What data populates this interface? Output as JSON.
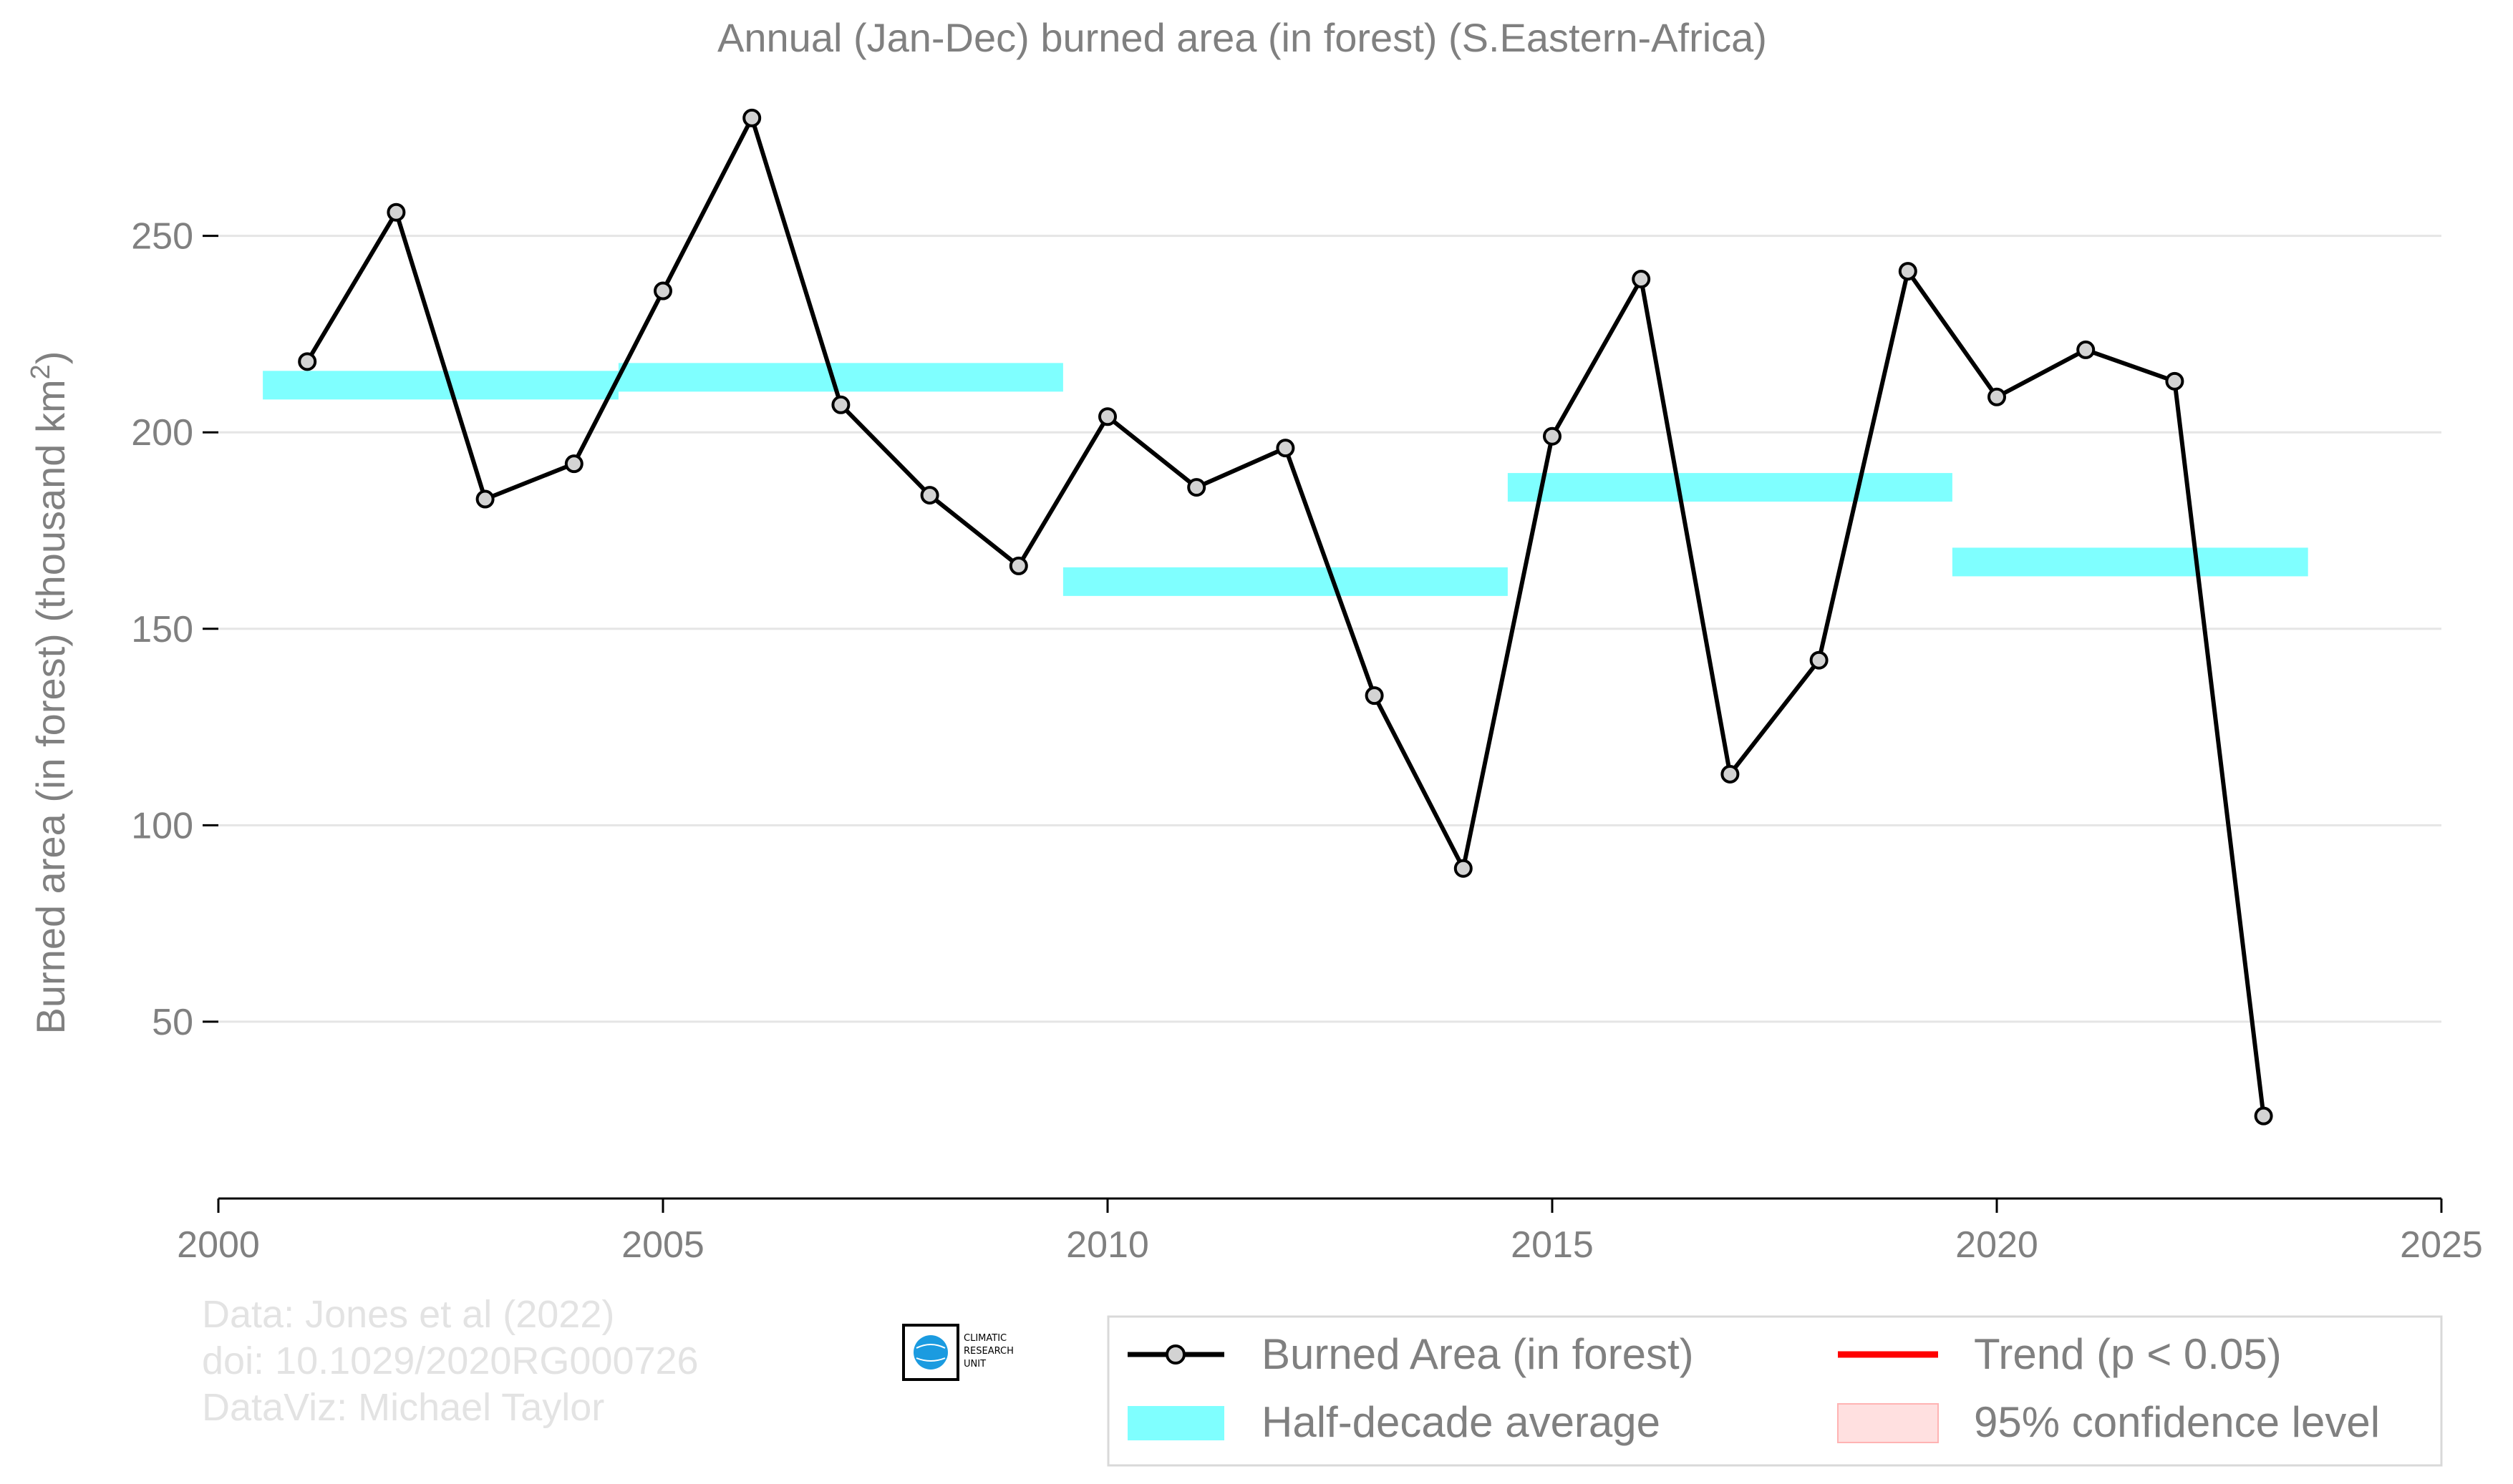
{
  "chart_data": {
    "type": "line",
    "title": "Annual (Jan-Dec) burned area (in forest) (S.Eastern-Africa)",
    "xlabel": "",
    "ylabel": "Burned area (in forest) (thousand km",
    "ylabel_superscript": "2",
    "ylabel_close": ")",
    "xlim": [
      2000,
      2025
    ],
    "ylim": [
      5,
      290
    ],
    "x_ticks": [
      2000,
      2005,
      2010,
      2015,
      2020,
      2025
    ],
    "y_ticks": [
      50,
      100,
      150,
      200,
      250
    ],
    "grid": "horizontal",
    "legend_position": "bottom-right",
    "series": [
      {
        "name": "Burned Area (in forest)",
        "color": "#000000",
        "marker_fill": "#d3d3d3",
        "x": [
          2001,
          2002,
          2003,
          2004,
          2005,
          2006,
          2007,
          2008,
          2009,
          2010,
          2011,
          2012,
          2013,
          2014,
          2015,
          2016,
          2017,
          2018,
          2019,
          2020,
          2021,
          2022,
          2023
        ],
        "y": [
          218,
          256,
          183,
          192,
          236,
          280,
          207,
          184,
          166,
          204,
          186,
          196,
          133,
          89,
          199,
          239,
          113,
          142,
          241,
          209,
          221,
          213,
          26
        ]
      },
      {
        "name": "Half-decade average",
        "color": "#00ffff",
        "segments": [
          {
            "x_start": 2000.5,
            "x_end": 2004.5,
            "y": 212
          },
          {
            "x_start": 2004.5,
            "x_end": 2009.5,
            "y": 214
          },
          {
            "x_start": 2009.5,
            "x_end": 2014.5,
            "y": 162
          },
          {
            "x_start": 2014.5,
            "x_end": 2019.5,
            "y": 186
          },
          {
            "x_start": 2019.5,
            "x_end": 2023.5,
            "y": 167
          }
        ]
      }
    ],
    "legend": [
      {
        "label": "Burned Area (in forest)",
        "kind": "line-marker",
        "color": "#000000"
      },
      {
        "label": "Trend (p < 0.05)",
        "kind": "line",
        "color": "#ff0000"
      },
      {
        "label": "Half-decade average",
        "kind": "band",
        "color": "#00ffff"
      },
      {
        "label": "95% confidence level",
        "kind": "box",
        "color": "#ffcccc"
      }
    ]
  },
  "credits": {
    "line1": "Data: Jones et al (2022)",
    "line2": "doi: 10.1029/2020RG000726",
    "line3": "DataViz: Michael Taylor"
  },
  "logo": {
    "line1": "CLIMATIC",
    "line2": "RESEARCH",
    "line3": "UNIT"
  }
}
